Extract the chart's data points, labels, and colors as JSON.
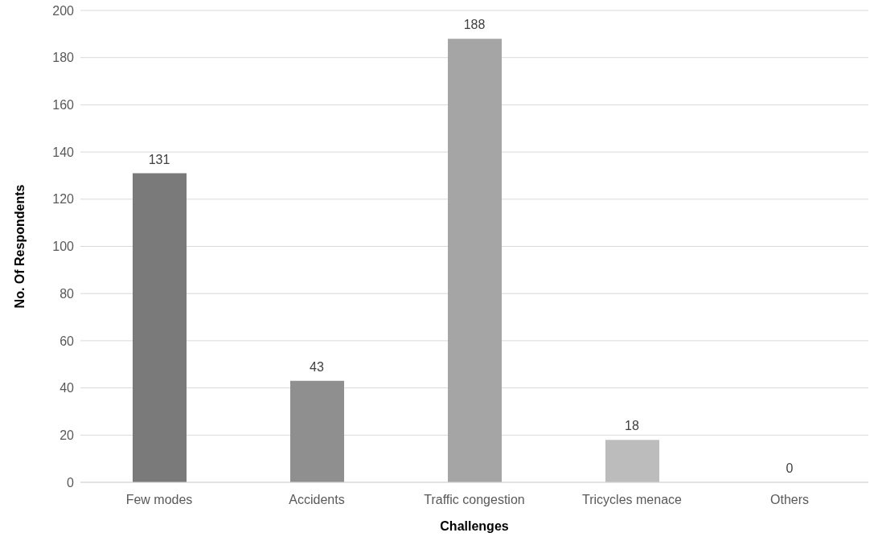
{
  "chart_data": {
    "type": "bar",
    "categories": [
      "Few modes",
      "Accidents",
      "Traffic congestion",
      "Tricycles menace",
      "Others"
    ],
    "values": [
      131,
      43,
      188,
      18,
      0
    ],
    "colors": [
      "#7a7a7a",
      "#8f8f8f",
      "#a5a5a5",
      "#bcbcbc",
      "#d0d0d0"
    ],
    "xlabel": "Challenges",
    "ylabel": "No. Of Respondents",
    "ylim": [
      0,
      200
    ],
    "yticks": [
      0,
      20,
      40,
      60,
      80,
      100,
      120,
      140,
      160,
      180,
      200
    ],
    "grid": "y",
    "data_labels": true
  }
}
